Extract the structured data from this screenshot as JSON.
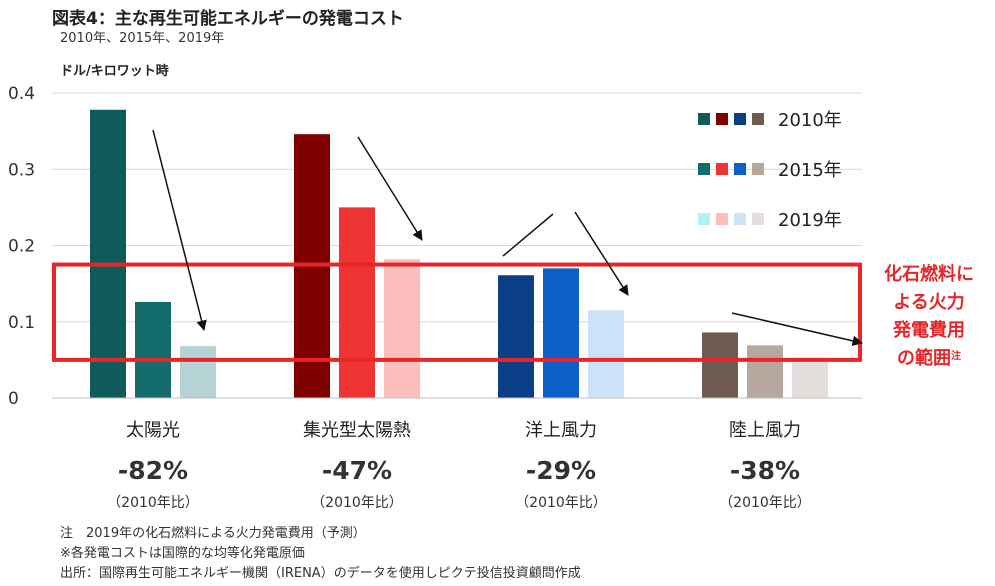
{
  "header": {
    "title": "図表4：主な再生可能エネルギーの発電コスト",
    "subtitle": "2010年、2015年、2019年",
    "unit": "ドル/キロワット時"
  },
  "chart_data": {
    "type": "bar",
    "categories": [
      "太陽光",
      "集光型太陽熱",
      "洋上風力",
      "陸上風力"
    ],
    "series": [
      {
        "name": "2010年",
        "values": [
          0.378,
          0.346,
          0.161,
          0.086
        ],
        "colors": [
          "#0f5a5a",
          "#800000",
          "#0a3f85",
          "#6e5a50"
        ]
      },
      {
        "name": "2015年",
        "values": [
          0.126,
          0.25,
          0.17,
          0.069
        ],
        "colors": [
          "#136b6b",
          "#ef3434",
          "#0c60c6",
          "#b8a79e"
        ]
      },
      {
        "name": "2019年",
        "values": [
          0.068,
          0.182,
          0.115,
          0.053
        ],
        "colors": [
          "#b5d3d4",
          "#fcbdbd",
          "#cde2f8",
          "#e4dfdc"
        ]
      }
    ],
    "ylim": [
      0,
      0.4
    ],
    "yticks": [
      "0",
      "0.1",
      "0.2",
      "0.3",
      "0.4"
    ],
    "fossil_range": [
      0.05,
      0.175
    ],
    "fossil_label_lines": [
      "化石燃料に",
      "よる火力",
      "発電費用",
      "の範囲"
    ],
    "fossil_label_sup": "注",
    "changes": [
      {
        "pct": "-82%",
        "base": "（2010年比）"
      },
      {
        "pct": "-47%",
        "base": "（2010年比）"
      },
      {
        "pct": "-29%",
        "base": "（2010年比）"
      },
      {
        "pct": "-38%",
        "base": "（2010年比）"
      }
    ],
    "legend": [
      {
        "label": "2010年",
        "colors": [
          "#0f5a5a",
          "#800000",
          "#0a3f85",
          "#6e5a50"
        ]
      },
      {
        "label": "2015年",
        "colors": [
          "#136b6b",
          "#ef3434",
          "#0c60c6",
          "#b8a79e"
        ]
      },
      {
        "label": "2019年",
        "colors": [
          "#b5f0f3",
          "#fcbdbd",
          "#cde2f8",
          "#e4dfdc"
        ]
      }
    ],
    "grid": true,
    "accent_color": "#e8262a"
  },
  "notes": [
    "注　2019年の化石燃料による火力発電費用（予測）",
    "※各発電コストは国際的な均等化発電原価",
    "出所：国際再生可能エネルギー機関（IRENA）のデータを使用しピクテ投信投資顧問作成"
  ]
}
